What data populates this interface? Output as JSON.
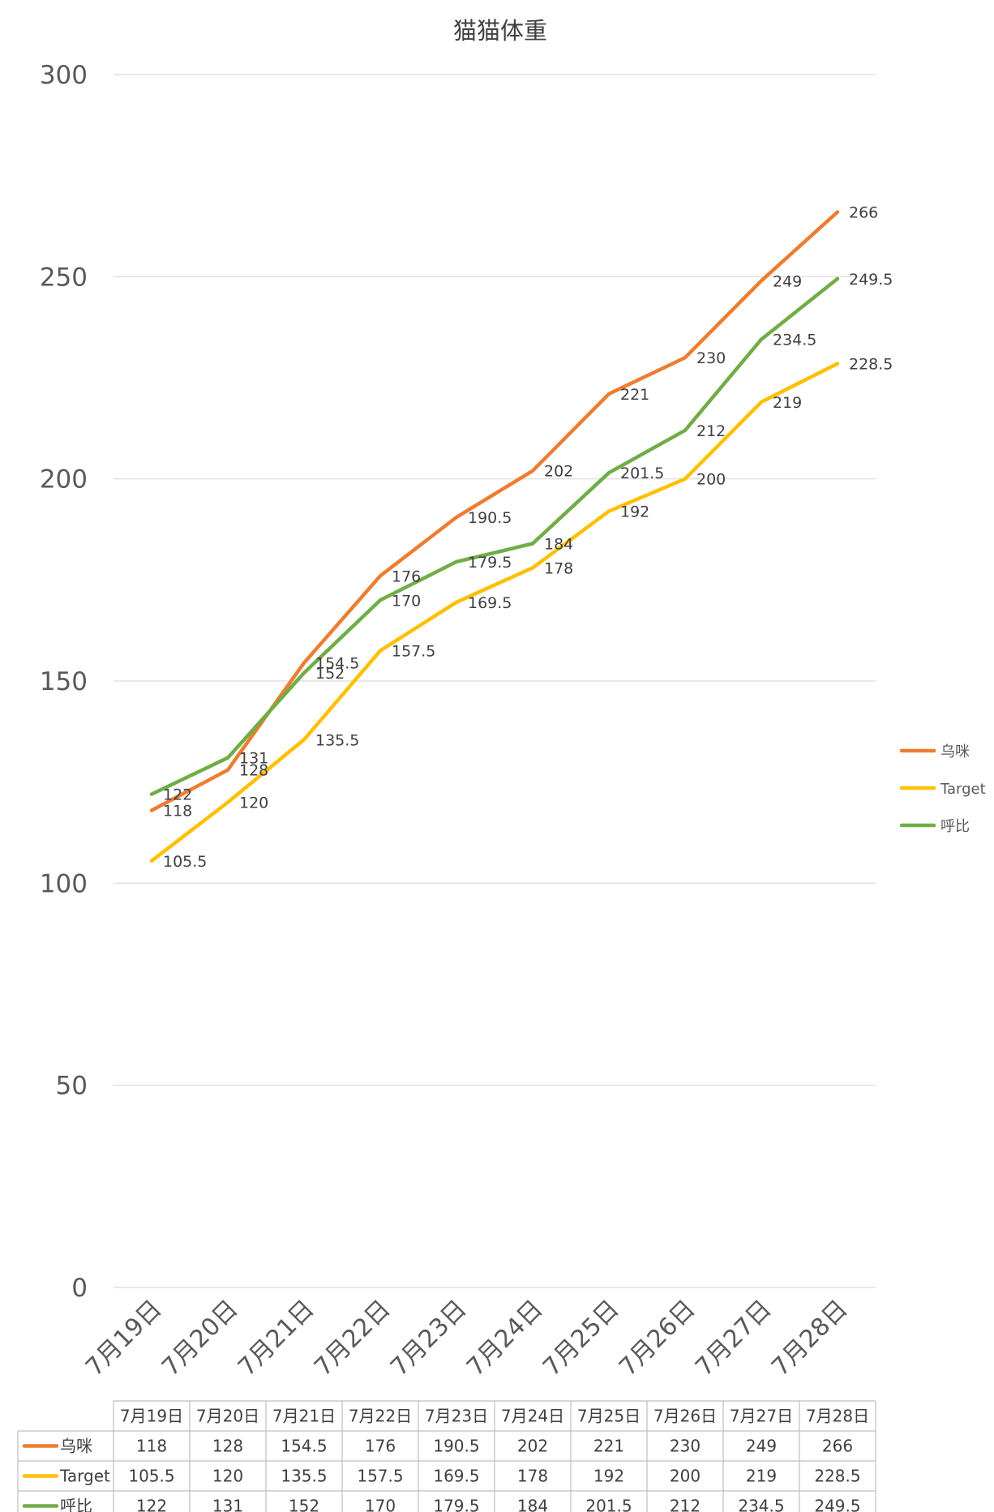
{
  "chart_data": {
    "type": "line",
    "title": "猫猫体重",
    "categories": [
      "7月19日",
      "7月20日",
      "7月21日",
      "7月22日",
      "7月23日",
      "7月24日",
      "7月25日",
      "7月26日",
      "7月27日",
      "7月28日"
    ],
    "series": [
      {
        "name": "乌咪",
        "color": "#ed7d31",
        "values": [
          118,
          128,
          154.5,
          176,
          190.5,
          202,
          221,
          230,
          249,
          266
        ]
      },
      {
        "name": "Target",
        "color": "#ffc000",
        "values": [
          105.5,
          120,
          135.5,
          157.5,
          169.5,
          178,
          192,
          200,
          219,
          228.5
        ]
      },
      {
        "name": "呼比",
        "color": "#70ad47",
        "values": [
          122,
          131,
          152,
          170,
          179.5,
          184,
          201.5,
          212,
          234.5,
          249.5
        ]
      }
    ],
    "ylim": [
      0,
      300
    ],
    "yticks": [
      0,
      50,
      100,
      150,
      200,
      250,
      300
    ],
    "grid": true,
    "legend": "right",
    "data_table": true
  }
}
